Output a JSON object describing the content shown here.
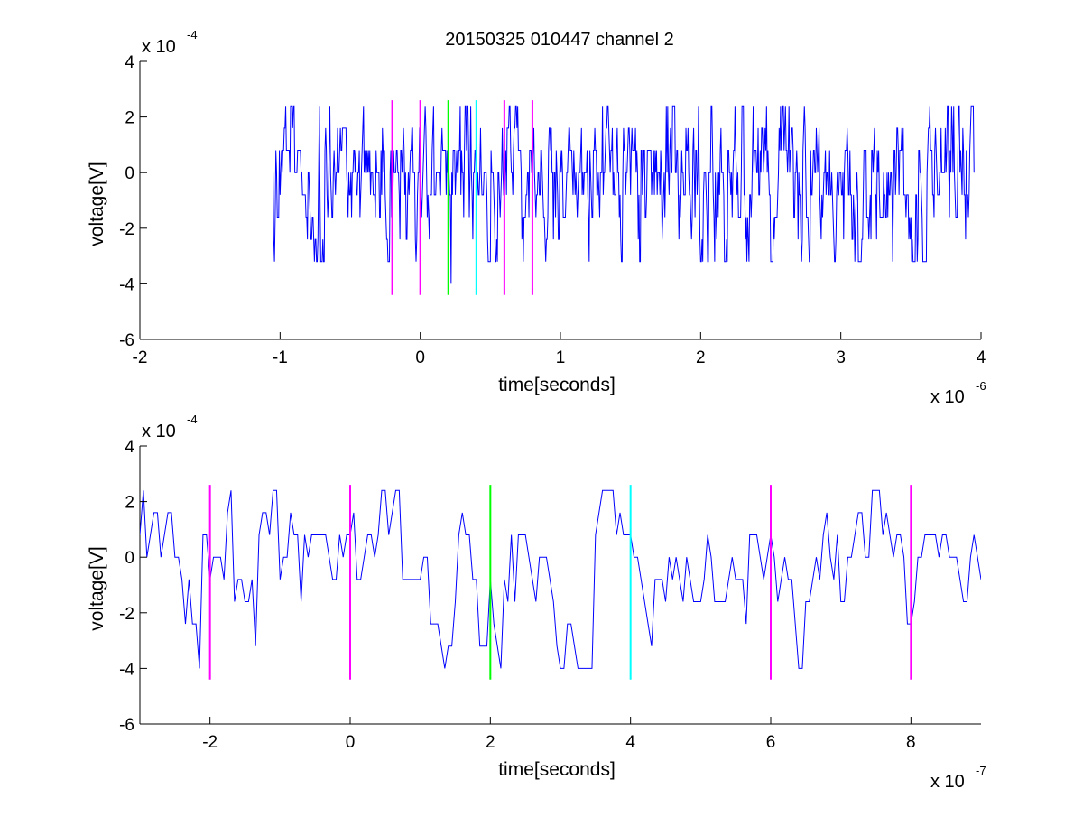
{
  "figure": {
    "title": "20150325 010447 channel 2"
  },
  "chart_data": [
    {
      "type": "line",
      "title": "20150325 010447 channel 2",
      "xlabel": "time[seconds]",
      "ylabel": "voltage[V]",
      "x_exponent_label": "x 10",
      "x_exponent": "-6",
      "y_exponent_label": "x 10",
      "y_exponent": "-4",
      "xlim": [
        -2,
        4
      ],
      "ylim": [
        -6,
        4
      ],
      "xticks": [
        -2,
        -1,
        0,
        1,
        2,
        3,
        4
      ],
      "xtick_labels": [
        "-2",
        "-1",
        "0",
        "1",
        "2",
        "3",
        "4"
      ],
      "yticks": [
        -6,
        -4,
        -2,
        0,
        2,
        4
      ],
      "ytick_labels": [
        "-6",
        "-4",
        "-2",
        "0",
        "2",
        "4"
      ],
      "grid": false,
      "signal": {
        "color": "#0000ff",
        "x_start": -1.05,
        "x_end": 3.95,
        "sample_step": 0.005,
        "levels": [
          -3.2,
          -2.4,
          -1.6,
          -0.8,
          0,
          0.8,
          1.6,
          2.4
        ],
        "noise_sigma": 1.0,
        "min_notable": [
          {
            "x": 0.22,
            "y": -4.0
          }
        ]
      },
      "markers": [
        {
          "x": -0.2,
          "y_range": [
            -4.4,
            2.6
          ],
          "color": "#ff00ff"
        },
        {
          "x": 0.0,
          "y_range": [
            -4.4,
            2.6
          ],
          "color": "#ff00ff"
        },
        {
          "x": 0.2,
          "y_range": [
            -4.4,
            2.6
          ],
          "color": "#00ff00"
        },
        {
          "x": 0.4,
          "y_range": [
            -4.4,
            2.6
          ],
          "color": "#00ffff"
        },
        {
          "x": 0.6,
          "y_range": [
            -4.4,
            2.6
          ],
          "color": "#ff00ff"
        },
        {
          "x": 0.8,
          "y_range": [
            -4.4,
            2.6
          ],
          "color": "#ff00ff"
        }
      ]
    },
    {
      "type": "line",
      "title": "",
      "xlabel": "time[seconds]",
      "ylabel": "voltage[V]",
      "x_exponent_label": "x 10",
      "x_exponent": "-7",
      "y_exponent_label": "x 10",
      "y_exponent": "-4",
      "xlim": [
        -3,
        9
      ],
      "ylim": [
        -6,
        4
      ],
      "xticks": [
        -2,
        0,
        2,
        4,
        6,
        8
      ],
      "xtick_labels": [
        "-2",
        "0",
        "2",
        "4",
        "6",
        "8"
      ],
      "yticks": [
        -6,
        -4,
        -2,
        0,
        2,
        4
      ],
      "ytick_labels": [
        "-6",
        "-4",
        "-2",
        "0",
        "2",
        "4"
      ],
      "grid": false,
      "signal": {
        "color": "#0000ff",
        "x_start": -3,
        "x_end": 9,
        "sample_step": 0.05,
        "levels": [
          -4.0,
          -3.2,
          -2.4,
          -1.6,
          -0.8,
          0,
          0.8,
          1.6,
          2.4
        ],
        "noise_sigma": 1.0,
        "min_notable": [
          {
            "x": 2.15,
            "y": -4.0
          }
        ]
      },
      "markers": [
        {
          "x": -2,
          "y_range": [
            -4.4,
            2.6
          ],
          "color": "#ff00ff"
        },
        {
          "x": 0,
          "y_range": [
            -4.4,
            2.6
          ],
          "color": "#ff00ff"
        },
        {
          "x": 2,
          "y_range": [
            -4.4,
            2.6
          ],
          "color": "#00ff00"
        },
        {
          "x": 4,
          "y_range": [
            -4.4,
            2.6
          ],
          "color": "#00ffff"
        },
        {
          "x": 6,
          "y_range": [
            -4.4,
            2.6
          ],
          "color": "#ff00ff"
        },
        {
          "x": 8,
          "y_range": [
            -4.4,
            2.6
          ],
          "color": "#ff00ff"
        }
      ]
    }
  ]
}
